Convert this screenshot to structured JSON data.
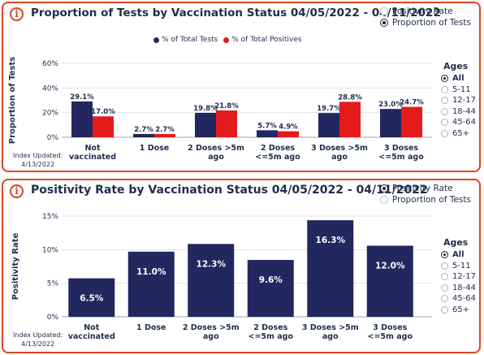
{
  "colors": {
    "navy": "#23275f",
    "red": "#e31b1b",
    "accent": "#d9461e"
  },
  "panel1": {
    "title": "Proportion of Tests by Vaccination Status 04/05/2022 - 04/11/2022",
    "radio": [
      {
        "label": "Positivity Rate",
        "selected": false
      },
      {
        "label": "Proportion of Tests",
        "selected": true
      }
    ],
    "legend": [
      "% of Total Tests",
      "% of Total Positives"
    ],
    "index_updated": [
      "Index Updated:",
      "4/13/2022"
    ],
    "ages_title": "Ages",
    "ages": [
      "All",
      "5-11",
      "12-17",
      "18-44",
      "45-64",
      "65+"
    ],
    "ages_selected": 0
  },
  "panel2": {
    "title": "Positivity Rate by Vaccination Status 04/05/2022 - 04/11/2022",
    "radio": [
      {
        "label": "Positivity Rate",
        "selected": true
      },
      {
        "label": "Proportion of Tests",
        "selected": false
      }
    ],
    "index_updated": [
      "Index Updated:",
      "4/13/2022"
    ],
    "ages_title": "Ages",
    "ages": [
      "All",
      "5-11",
      "12-17",
      "18-44",
      "45-64",
      "65+"
    ],
    "ages_selected": 0
  },
  "chart_data": [
    {
      "type": "bar",
      "title": "Proportion of Tests by Vaccination Status 04/05/2022 - 04/11/2022",
      "ylabel": "Proportion of Tests",
      "ylim": [
        0,
        60
      ],
      "yticks": [
        "0%",
        "20%",
        "40%",
        "60%"
      ],
      "categories": [
        [
          "Not",
          "vaccinated"
        ],
        [
          "1 Dose"
        ],
        [
          "2 Doses >5m",
          "ago"
        ],
        [
          "2 Doses",
          "<=5m ago"
        ],
        [
          "3 Doses >5m",
          "ago"
        ],
        [
          "3 Doses",
          "<=5m ago"
        ]
      ],
      "series": [
        {
          "name": "% of Total Tests",
          "color": "#23275f",
          "values": [
            29.1,
            2.7,
            19.8,
            5.7,
            19.7,
            23.0
          ],
          "labels": [
            "29.1%",
            "2.7%",
            "19.8%",
            "5.7%",
            "19.7%",
            "23.0%"
          ]
        },
        {
          "name": "% of Total Positives",
          "color": "#e31b1b",
          "values": [
            17.0,
            2.7,
            21.8,
            4.9,
            28.8,
            24.7
          ],
          "labels": [
            "17.0%",
            "2.7%",
            "21.8%",
            "4.9%",
            "28.8%",
            "24.7%"
          ]
        }
      ],
      "grid": true
    },
    {
      "type": "bar",
      "title": "Positivity Rate by Vaccination Status 04/05/2022 - 04/11/2022",
      "ylabel": "Positivity Rate",
      "ylim": [
        0,
        17
      ],
      "yticks": [
        "0%",
        "5%",
        "10%",
        "15%"
      ],
      "categories": [
        [
          "Not",
          "vaccinated"
        ],
        [
          "1 Dose"
        ],
        [
          "2 Doses >5m",
          "ago"
        ],
        [
          "2 Doses",
          "<=5m ago"
        ],
        [
          "3 Doses >5m",
          "ago"
        ],
        [
          "3 Doses",
          "<=5m ago"
        ]
      ],
      "series": [
        {
          "color": "#23275f",
          "values": [
            6.5,
            11.0,
            12.3,
            9.6,
            16.3,
            12.0
          ],
          "labels": [
            "6.5%",
            "11.0%",
            "12.3%",
            "9.6%",
            "16.3%",
            "12.0%"
          ]
        }
      ],
      "grid": true
    }
  ]
}
